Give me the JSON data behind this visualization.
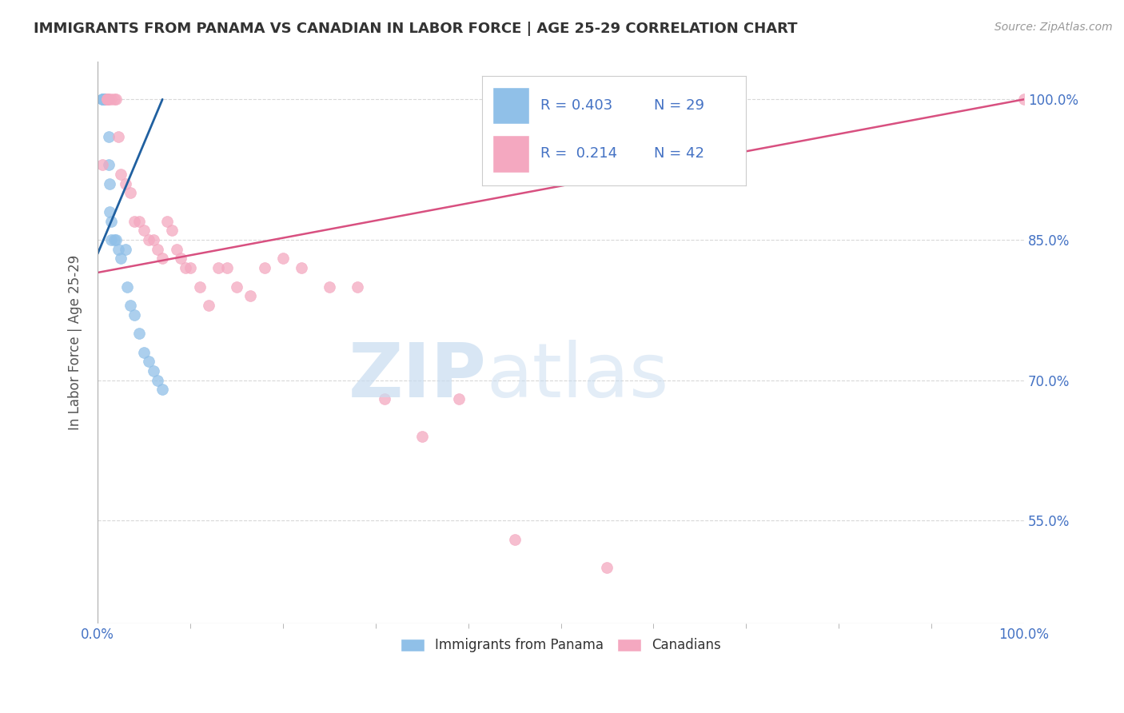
{
  "title": "IMMIGRANTS FROM PANAMA VS CANADIAN IN LABOR FORCE | AGE 25-29 CORRELATION CHART",
  "source": "Source: ZipAtlas.com",
  "ylabel": "In Labor Force | Age 25-29",
  "xlim": [
    0.0,
    1.0
  ],
  "ylim": [
    0.44,
    1.04
  ],
  "yticks": [
    0.55,
    0.7,
    0.85,
    1.0
  ],
  "ytick_labels": [
    "55.0%",
    "70.0%",
    "85.0%",
    "100.0%"
  ],
  "xtick_labels": [
    "0.0%",
    "100.0%"
  ],
  "xticks": [
    0.0,
    1.0
  ],
  "legend_blue_label": "Immigrants from Panama",
  "legend_pink_label": "Canadians",
  "legend_r_blue": "R = 0.403",
  "legend_n_blue": "N = 29",
  "legend_r_pink": "R =  0.214",
  "legend_n_pink": "N = 42",
  "blue_scatter_x": [
    0.005,
    0.005,
    0.005,
    0.008,
    0.008,
    0.008,
    0.01,
    0.01,
    0.01,
    0.012,
    0.012,
    0.013,
    0.013,
    0.015,
    0.015,
    0.018,
    0.02,
    0.022,
    0.025,
    0.03,
    0.032,
    0.035,
    0.04,
    0.045,
    0.05,
    0.055,
    0.06,
    0.065,
    0.07
  ],
  "blue_scatter_y": [
    1.0,
    1.0,
    1.0,
    1.0,
    1.0,
    1.0,
    1.0,
    1.0,
    1.0,
    0.96,
    0.93,
    0.91,
    0.88,
    0.87,
    0.85,
    0.85,
    0.85,
    0.84,
    0.83,
    0.84,
    0.8,
    0.78,
    0.77,
    0.75,
    0.73,
    0.72,
    0.71,
    0.7,
    0.69
  ],
  "pink_scatter_x": [
    0.005,
    0.01,
    0.01,
    0.01,
    0.012,
    0.015,
    0.018,
    0.02,
    0.022,
    0.025,
    0.03,
    0.035,
    0.04,
    0.045,
    0.05,
    0.055,
    0.06,
    0.065,
    0.07,
    0.075,
    0.08,
    0.085,
    0.09,
    0.095,
    0.1,
    0.11,
    0.12,
    0.13,
    0.14,
    0.15,
    0.165,
    0.18,
    0.2,
    0.22,
    0.25,
    0.28,
    0.31,
    0.35,
    0.39,
    0.45,
    0.55,
    1.0
  ],
  "pink_scatter_y": [
    0.93,
    1.0,
    1.0,
    1.0,
    1.0,
    1.0,
    1.0,
    1.0,
    0.96,
    0.92,
    0.91,
    0.9,
    0.87,
    0.87,
    0.86,
    0.85,
    0.85,
    0.84,
    0.83,
    0.87,
    0.86,
    0.84,
    0.83,
    0.82,
    0.82,
    0.8,
    0.78,
    0.82,
    0.82,
    0.8,
    0.79,
    0.82,
    0.83,
    0.82,
    0.8,
    0.8,
    0.68,
    0.64,
    0.68,
    0.53,
    0.5,
    1.0
  ],
  "blue_line_x": [
    0.0,
    0.07
  ],
  "blue_line_y": [
    0.835,
    1.0
  ],
  "pink_line_x": [
    0.0,
    1.0
  ],
  "pink_line_y": [
    0.815,
    1.0
  ],
  "blue_color": "#90C0E8",
  "pink_color": "#F4A8C0",
  "blue_line_color": "#2060A0",
  "pink_line_color": "#D85080",
  "title_color": "#333333",
  "axis_label_color": "#555555",
  "tick_color_right": "#4472C4",
  "grid_color": "#D8D8D8",
  "legend_text_color": "#4472C4",
  "background_color": "#FFFFFF"
}
